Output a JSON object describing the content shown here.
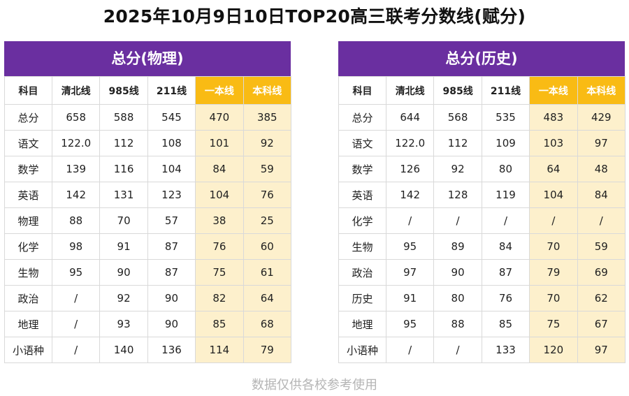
{
  "title": "2025年10月9日10日TOP20高三联考分数线(赋分)",
  "footer": "数据仅供各校参考使用",
  "colors": {
    "header_bg": "#6a2fa0",
    "highlight_header": "#f9bb14",
    "highlight_cell": "#fdf0cc"
  },
  "tables": [
    {
      "heading": "总分(物理)",
      "columns": [
        "科目",
        "清北线",
        "985线",
        "211线",
        "一本线",
        "本科线"
      ],
      "rows": [
        [
          "总分",
          "658",
          "588",
          "545",
          "470",
          "385"
        ],
        [
          "语文",
          "122.0",
          "112",
          "108",
          "101",
          "92"
        ],
        [
          "数学",
          "139",
          "116",
          "104",
          "84",
          "59"
        ],
        [
          "英语",
          "142",
          "131",
          "123",
          "104",
          "76"
        ],
        [
          "物理",
          "88",
          "70",
          "57",
          "38",
          "25"
        ],
        [
          "化学",
          "98",
          "91",
          "87",
          "76",
          "60"
        ],
        [
          "生物",
          "95",
          "90",
          "87",
          "75",
          "61"
        ],
        [
          "政治",
          "/",
          "92",
          "90",
          "82",
          "64"
        ],
        [
          "地理",
          "/",
          "93",
          "90",
          "85",
          "68"
        ],
        [
          "小语种",
          "/",
          "140",
          "136",
          "114",
          "79"
        ]
      ]
    },
    {
      "heading": "总分(历史)",
      "columns": [
        "科目",
        "清北线",
        "985线",
        "211线",
        "一本线",
        "本科线"
      ],
      "rows": [
        [
          "总分",
          "644",
          "568",
          "535",
          "483",
          "429"
        ],
        [
          "语文",
          "122.0",
          "112",
          "109",
          "103",
          "97"
        ],
        [
          "数学",
          "126",
          "92",
          "80",
          "64",
          "48"
        ],
        [
          "英语",
          "142",
          "128",
          "119",
          "104",
          "84"
        ],
        [
          "化学",
          "/",
          "/",
          "/",
          "/",
          "/"
        ],
        [
          "生物",
          "95",
          "89",
          "84",
          "70",
          "59"
        ],
        [
          "政治",
          "97",
          "90",
          "87",
          "79",
          "69"
        ],
        [
          "历史",
          "91",
          "80",
          "76",
          "70",
          "62"
        ],
        [
          "地理",
          "95",
          "88",
          "85",
          "75",
          "67"
        ],
        [
          "小语种",
          "/",
          "/",
          "133",
          "120",
          "97"
        ]
      ]
    }
  ]
}
